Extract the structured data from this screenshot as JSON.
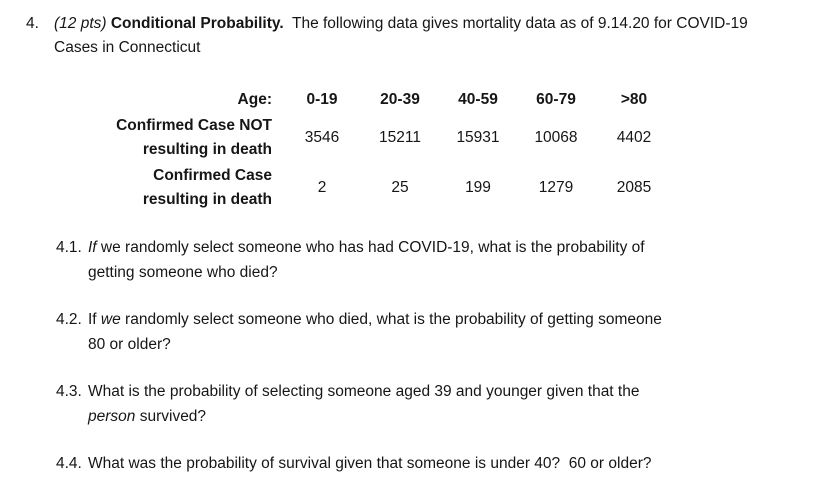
{
  "page": {
    "background_color": "#ffffff",
    "text_color": "#161616"
  },
  "problem": {
    "number": "4.",
    "points": "(12 pts) ",
    "title": "Conditional Probability.",
    "intro_line1": "  The following data gives mortality data as of 9.14.20 for COVID-19",
    "intro_line2": "Cases in Connecticut"
  },
  "table": {
    "age_label": "Age:",
    "columns": [
      "0-19",
      "20-39",
      "40-59",
      "60-79",
      ">80"
    ],
    "rows": [
      {
        "label_line1": "Confirmed Case NOT",
        "label_line2": "resulting in death",
        "values": [
          "3546",
          "15211",
          "15931",
          "10068",
          "4402"
        ]
      },
      {
        "label_line1": "Confirmed Case",
        "label_line2": "resulting in death",
        "values": [
          "2",
          "25",
          "199",
          "1279",
          "2085"
        ]
      }
    ]
  },
  "questions": [
    {
      "number": "4.1.",
      "italic_word": "If",
      "line1_rest": " we randomly select someone who has had COVID-19, what is the probability of",
      "line2": "getting someone who died?"
    },
    {
      "number": "4.2.",
      "line1_pre": "If ",
      "italic_word": "we",
      "line1_rest": " randomly select someone who died, what is the probability of getting someone",
      "line2": "80 or older?"
    },
    {
      "number": "4.3.",
      "line1": "What is the probability of selecting someone aged 39 and younger given that the",
      "italic_word": "person",
      "line2_rest": " survived?"
    },
    {
      "number": "4.4.",
      "line1": "What was the probability of survival given that someone is under 40?  60 or older?"
    }
  ]
}
